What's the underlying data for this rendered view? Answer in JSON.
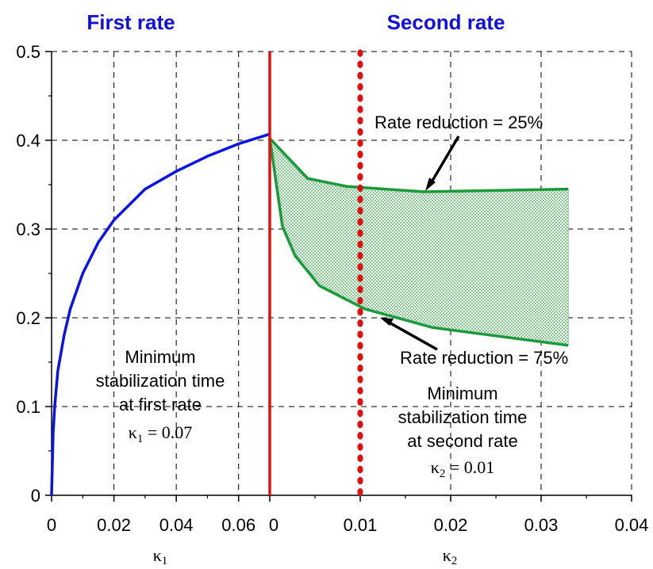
{
  "chart_data": {
    "type": "line",
    "panel_titles": {
      "left": "First rate",
      "right": "Second rate"
    },
    "y_axis": {
      "ylim": [
        0,
        0.5
      ],
      "ticks": [
        "0",
        "0.1",
        "0.2",
        "0.3",
        "0.4",
        "0.5"
      ]
    },
    "left_panel": {
      "xlabel": "κ1",
      "xlim": [
        0,
        0.07
      ],
      "ticks": [
        "0",
        "0.02",
        "0.04",
        "0.06"
      ],
      "series": [
        {
          "color": "#0a14e6",
          "points": [
            [
              0,
              0
            ],
            [
              0.0005,
              0.07
            ],
            [
              0.001,
              0.1
            ],
            [
              0.002,
              0.14
            ],
            [
              0.004,
              0.18
            ],
            [
              0.006,
              0.21
            ],
            [
              0.01,
              0.25
            ],
            [
              0.015,
              0.285
            ],
            [
              0.02,
              0.31
            ],
            [
              0.03,
              0.345
            ],
            [
              0.04,
              0.365
            ],
            [
              0.05,
              0.382
            ],
            [
              0.06,
              0.396
            ],
            [
              0.07,
              0.407
            ]
          ]
        }
      ],
      "annotation": {
        "lines": [
          "Minimum",
          "stabilization time",
          "at first rate"
        ],
        "kappa_label": "κ1 = 0.07"
      }
    },
    "right_panel": {
      "xlabel": "κ2",
      "xlim": [
        0,
        0.04
      ],
      "ticks": [
        "0",
        "0.01",
        "0.02",
        "0.03",
        "0.04"
      ],
      "vertical_solid_line": {
        "x": 0,
        "color": "#e01010"
      },
      "vertical_dotted_line": {
        "x": 0.01,
        "color": "#e01010"
      },
      "series": [
        {
          "label": "Rate reduction = 25%",
          "color": "#1a9a3a",
          "points": [
            [
              0,
              0.402
            ],
            [
              0.0042,
              0.357
            ],
            [
              0.0085,
              0.348
            ],
            [
              0.017,
              0.342
            ],
            [
              0.033,
              0.345
            ]
          ]
        },
        {
          "label": "Rate reduction = 75%",
          "color": "#1a9a3a",
          "points": [
            [
              0,
              0.402
            ],
            [
              0.0014,
              0.303
            ],
            [
              0.0028,
              0.27
            ],
            [
              0.0055,
              0.236
            ],
            [
              0.0105,
              0.21
            ],
            [
              0.018,
              0.189
            ],
            [
              0.033,
              0.169
            ]
          ]
        }
      ],
      "annotation": {
        "lines": [
          "Minimum",
          "stabilization time",
          "at second rate"
        ],
        "kappa_label": "κ2 = 0.01"
      }
    },
    "grid": "dashed"
  }
}
